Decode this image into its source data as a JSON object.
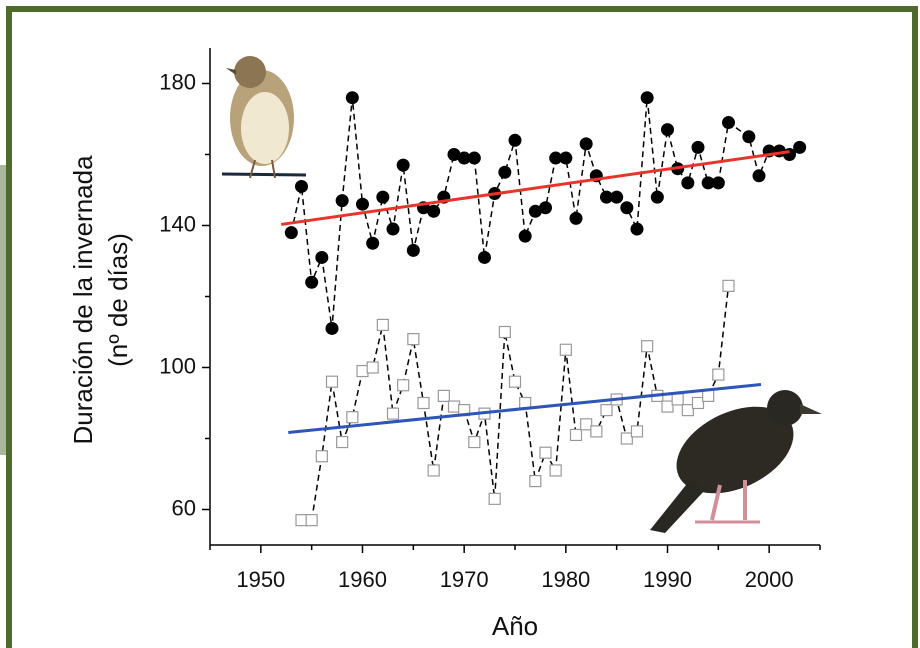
{
  "chart_data": {
    "type": "line",
    "ylabel": [
      "Duración de la invernada",
      "(nº de días)"
    ],
    "xlabel": "Año",
    "xlim": [
      1945,
      2005
    ],
    "ylim": [
      50,
      190
    ],
    "xticks": [
      1950,
      1960,
      1970,
      1980,
      1990,
      2000
    ],
    "xminor_ticks": [
      1945,
      1955,
      1965,
      1975,
      1985,
      1995,
      2005
    ],
    "yticks": [
      60,
      100,
      140,
      180
    ],
    "yminor_ticks": [
      80,
      120,
      160
    ],
    "series": [
      {
        "marker": "filled-circle",
        "color": "#000000",
        "x": [
          1953,
          1954,
          1955,
          1956,
          1957,
          1958,
          1959,
          1960,
          1961,
          1962,
          1963,
          1964,
          1965,
          1966,
          1967,
          1968,
          1969,
          1970,
          1971,
          1972,
          1973,
          1974,
          1975,
          1976,
          1977,
          1978,
          1979,
          1980,
          1981,
          1982,
          1983,
          1984,
          1985,
          1986,
          1987,
          1988,
          1989,
          1990,
          1991,
          1992,
          1993,
          1994,
          1995,
          1996,
          1998,
          1999,
          2000,
          2001,
          2002,
          2003
        ],
        "values": [
          138,
          151,
          124,
          131,
          111,
          147,
          176,
          146,
          135,
          148,
          139,
          157,
          133,
          145,
          144,
          148,
          160,
          159,
          159,
          131,
          149,
          155,
          164,
          137,
          144,
          145,
          159,
          159,
          142,
          163,
          154,
          148,
          148,
          145,
          139,
          176,
          148,
          167,
          156,
          152,
          162,
          152,
          152,
          169,
          165,
          154,
          161,
          161,
          160,
          162
        ]
      },
      {
        "marker": "open-square",
        "color": "#999999",
        "x": [
          1954,
          1955,
          1956,
          1957,
          1958,
          1959,
          1960,
          1961,
          1962,
          1963,
          1964,
          1965,
          1966,
          1967,
          1968,
          1969,
          1970,
          1971,
          1972,
          1973,
          1974,
          1975,
          1976,
          1977,
          1978,
          1979,
          1980,
          1981,
          1982,
          1983,
          1984,
          1985,
          1986,
          1987,
          1988,
          1989,
          1990,
          1991,
          1992,
          1993,
          1994,
          1995,
          1996
        ],
        "values": [
          57,
          57,
          75,
          96,
          79,
          86,
          99,
          100,
          112,
          87,
          95,
          108,
          90,
          71,
          92,
          89,
          88,
          79,
          87,
          63,
          110,
          96,
          90,
          68,
          76,
          71,
          105,
          81,
          84,
          82,
          88,
          91,
          80,
          82,
          106,
          92,
          89,
          91,
          88,
          90,
          92,
          98,
          123
        ]
      },
      {
        "marker": "trend",
        "color": "#e8342a",
        "x": [
          1952,
          2002
        ],
        "values": [
          140.3,
          160.8
        ]
      },
      {
        "marker": "trend",
        "color": "#2e55b8",
        "x": [
          1952.7,
          1999.2
        ],
        "values": [
          81.7,
          95.2
        ]
      }
    ]
  }
}
